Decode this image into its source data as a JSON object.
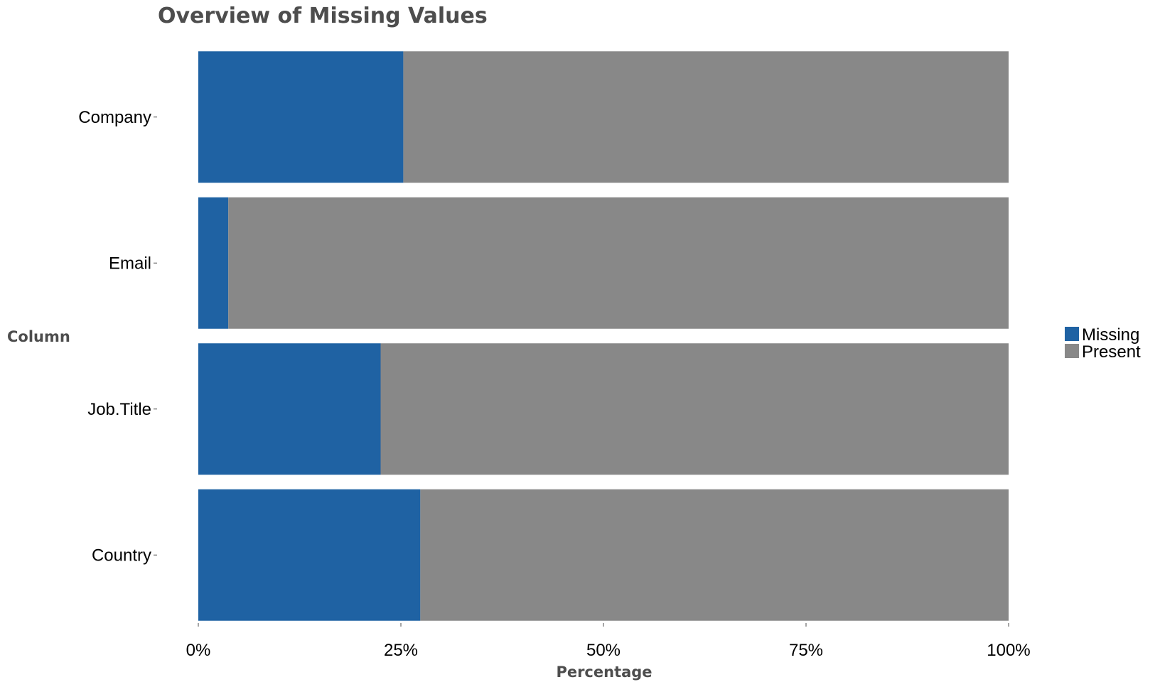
{
  "chart_data": {
    "type": "bar",
    "orientation": "horizontal",
    "stacked": true,
    "title": "Overview of Missing Values",
    "xlabel": "Percentage",
    "ylabel": "Column",
    "categories": [
      "Company",
      "Email",
      "Job.Title",
      "Country"
    ],
    "series": [
      {
        "name": "Missing",
        "color": "#1f62a3",
        "values": [
          25.3,
          3.7,
          22.5,
          27.4
        ]
      },
      {
        "name": "Present",
        "color": "#888888",
        "values": [
          74.7,
          96.3,
          77.5,
          72.6
        ]
      }
    ],
    "xlim": [
      0,
      100
    ],
    "x_ticks": [
      0,
      25,
      50,
      75,
      100
    ],
    "x_tick_labels": [
      "0%",
      "25%",
      "50%",
      "75%",
      "100%"
    ],
    "grid": false,
    "legend_position": "right"
  }
}
